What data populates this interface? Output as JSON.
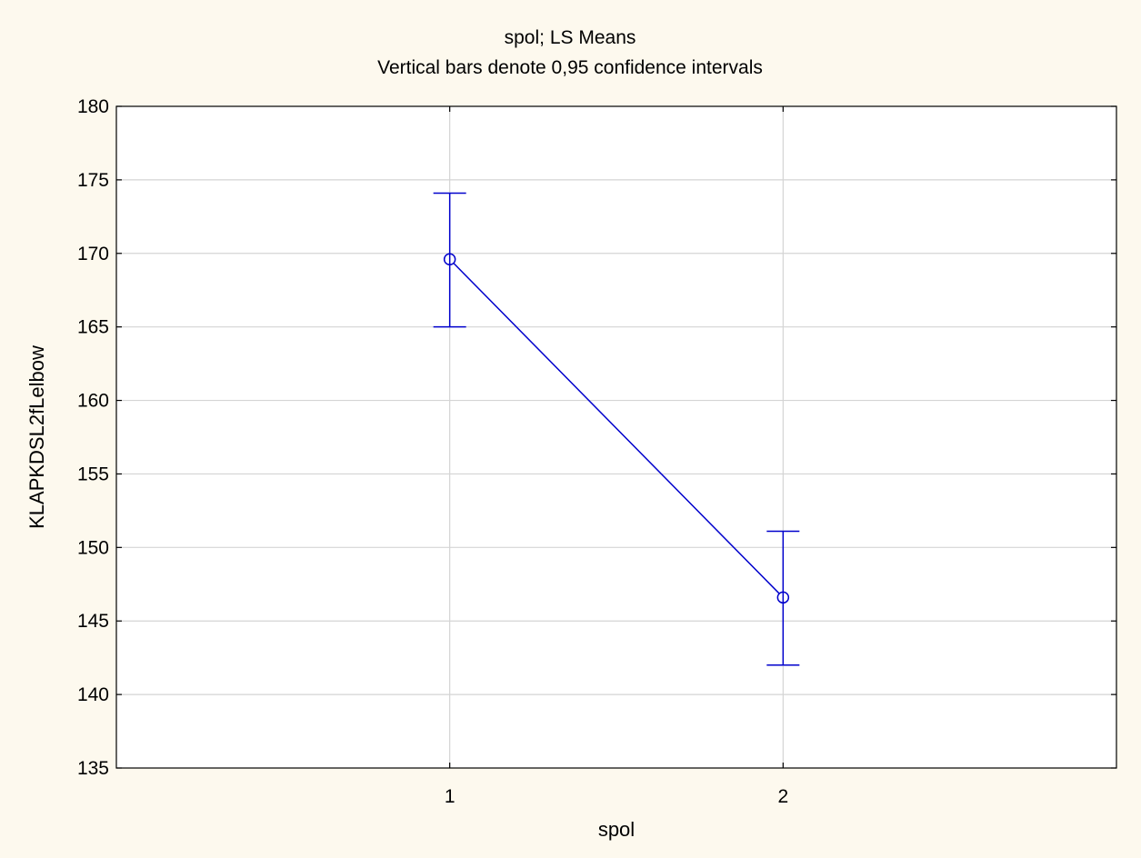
{
  "chart_data": {
    "type": "line",
    "title": "spol; LS Means",
    "subtitle": "Vertical bars denote 0,95 confidence intervals",
    "xlabel": "spol",
    "ylabel": "KLAPKDSL2fLelbow",
    "categories": [
      "1",
      "2"
    ],
    "ylim": [
      135,
      180
    ],
    "yticks": [
      135,
      140,
      145,
      150,
      155,
      160,
      165,
      170,
      175,
      180
    ],
    "grid": true,
    "series": [
      {
        "values": [
          169.6,
          146.6
        ],
        "ci_lower": [
          165.0,
          142.0
        ],
        "ci_upper": [
          174.1,
          151.1
        ]
      }
    ],
    "colors": {
      "background": "#fdf9ee",
      "plot_background": "#ffffff",
      "series": "#0000cc",
      "grid": "#d4d4d4",
      "axis": "#000000"
    }
  }
}
